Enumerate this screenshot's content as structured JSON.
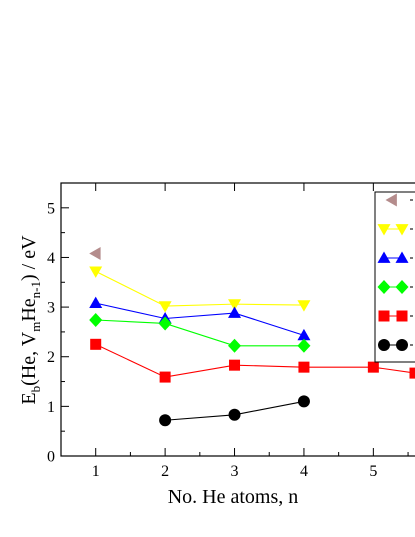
{
  "chart_data": {
    "type": "line",
    "xlabel": "No. He atoms, n",
    "ylabel": {
      "p1": "E",
      "s1": "b",
      "p2": "(He, V",
      "s2": "m",
      "p3": "He",
      "s3": "n-1",
      "p4": ") / eV"
    },
    "xlim": [
      0.5,
      5.6
    ],
    "ylim": [
      0,
      5.5
    ],
    "xticks": [
      1,
      2,
      3,
      4,
      5
    ],
    "yticks": [
      0,
      1,
      2,
      3,
      4,
      5
    ],
    "grid": false,
    "legend_position": "top-right",
    "series": [
      {
        "color": "#b48c8c",
        "marker": "triangle-left",
        "connect": false,
        "x": [
          1
        ],
        "y": [
          4.08
        ]
      },
      {
        "color": "#ffff00",
        "marker": "triangle-down",
        "connect": true,
        "x": [
          1,
          2,
          3,
          4
        ],
        "y": [
          3.72,
          3.02,
          3.06,
          3.04
        ]
      },
      {
        "color": "#0000ff",
        "marker": "triangle-up",
        "connect": true,
        "x": [
          1,
          2,
          3,
          4
        ],
        "y": [
          3.08,
          2.77,
          2.88,
          2.43
        ]
      },
      {
        "color": "#00ff00",
        "marker": "diamond",
        "connect": true,
        "x": [
          1,
          2,
          3,
          4
        ],
        "y": [
          2.74,
          2.67,
          2.22,
          2.22
        ]
      },
      {
        "color": "#ff0000",
        "marker": "square",
        "connect": true,
        "x": [
          1,
          2,
          3,
          4,
          5,
          5.6
        ],
        "y": [
          2.25,
          1.59,
          1.83,
          1.79,
          1.79,
          1.67
        ]
      },
      {
        "color": "#000000",
        "marker": "circle",
        "connect": true,
        "x": [
          2,
          3,
          4
        ],
        "y": [
          0.72,
          0.83,
          1.1
        ]
      }
    ]
  }
}
